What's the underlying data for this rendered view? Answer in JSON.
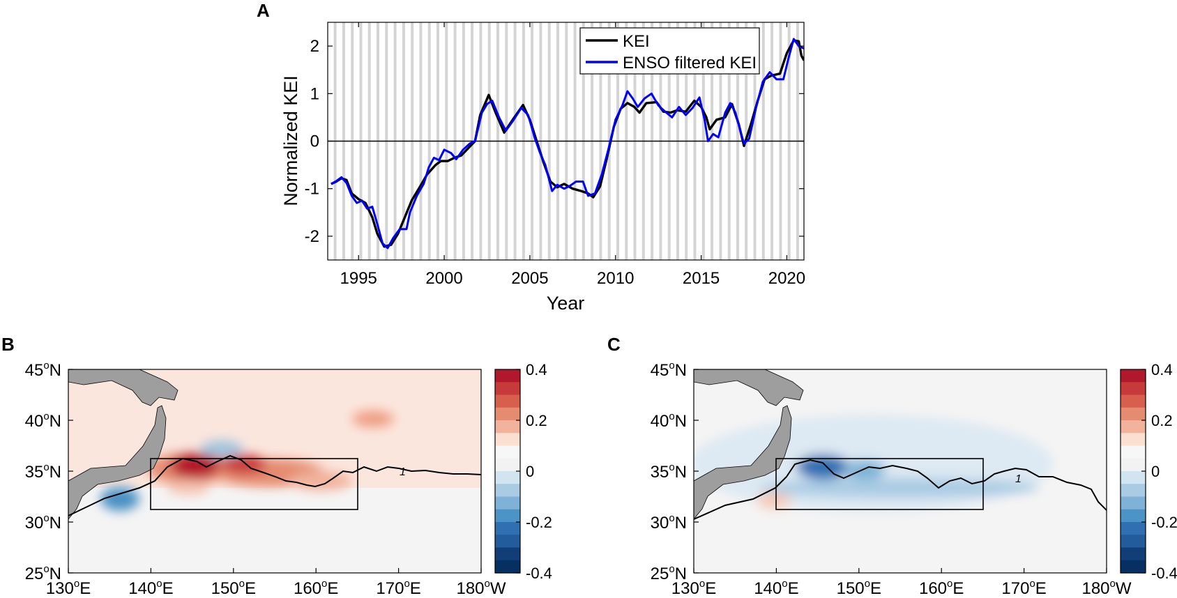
{
  "chart_data": [
    {
      "panel": "A",
      "type": "line",
      "xlabel": "Year",
      "ylabel": "Normalized KEI",
      "xlim": [
        1993.2,
        2021.0
      ],
      "ylim": [
        -2.5,
        2.5
      ],
      "xticks": [
        1995,
        2000,
        2005,
        2010,
        2015,
        2020
      ],
      "xtick_labels": [
        "1995",
        "2000",
        "2005",
        "2010",
        "2015",
        "2020"
      ],
      "yticks": [
        -2,
        -1,
        0,
        1,
        2
      ],
      "ytick_labels": [
        "-2",
        "-1",
        "0",
        "1",
        "2"
      ],
      "zero_line": true,
      "shading": "alternating light-grey vertical bands (winter months)",
      "legend_position": "top-right",
      "series": [
        {
          "name": "KEI",
          "color": "#000000",
          "points": [
            [
              1993.4,
              -0.9
            ],
            [
              1993.7,
              -0.85
            ],
            [
              1994.0,
              -0.78
            ],
            [
              1994.3,
              -0.82
            ],
            [
              1994.6,
              -1.1
            ],
            [
              1995.0,
              -1.22
            ],
            [
              1995.4,
              -1.3
            ],
            [
              1995.8,
              -1.6
            ],
            [
              1996.1,
              -1.95
            ],
            [
              1996.5,
              -2.22
            ],
            [
              1996.9,
              -2.18
            ],
            [
              1997.3,
              -1.95
            ],
            [
              1997.7,
              -1.6
            ],
            [
              1998.1,
              -1.25
            ],
            [
              1998.6,
              -0.95
            ],
            [
              1999.0,
              -0.7
            ],
            [
              1999.5,
              -0.5
            ],
            [
              1999.8,
              -0.42
            ],
            [
              2000.2,
              -0.42
            ],
            [
              2000.6,
              -0.35
            ],
            [
              2001.0,
              -0.3
            ],
            [
              2001.4,
              -0.15
            ],
            [
              2001.8,
              0.0
            ],
            [
              2002.1,
              0.55
            ],
            [
              2002.6,
              0.97
            ],
            [
              2003.0,
              0.6
            ],
            [
              2003.5,
              0.18
            ],
            [
              2004.0,
              0.45
            ],
            [
              2004.6,
              0.76
            ],
            [
              2005.0,
              0.45
            ],
            [
              2005.4,
              0.0
            ],
            [
              2005.8,
              -0.45
            ],
            [
              2006.2,
              -0.85
            ],
            [
              2006.6,
              -0.97
            ],
            [
              2007.0,
              -0.9
            ],
            [
              2007.5,
              -1.0
            ],
            [
              2008.0,
              -1.05
            ],
            [
              2008.4,
              -1.1
            ],
            [
              2008.7,
              -1.18
            ],
            [
              2009.1,
              -0.95
            ],
            [
              2009.5,
              -0.35
            ],
            [
              2009.9,
              0.3
            ],
            [
              2010.3,
              0.68
            ],
            [
              2010.7,
              0.8
            ],
            [
              2011.1,
              0.72
            ],
            [
              2011.4,
              0.6
            ],
            [
              2011.8,
              0.8
            ],
            [
              2012.4,
              0.82
            ],
            [
              2012.8,
              0.62
            ],
            [
              2013.2,
              0.6
            ],
            [
              2013.6,
              0.65
            ],
            [
              2014.1,
              0.62
            ],
            [
              2014.6,
              0.85
            ],
            [
              2015.0,
              0.72
            ],
            [
              2015.3,
              0.5
            ],
            [
              2015.5,
              0.25
            ],
            [
              2015.9,
              0.45
            ],
            [
              2016.4,
              0.5
            ],
            [
              2016.8,
              0.78
            ],
            [
              2017.2,
              0.35
            ],
            [
              2017.5,
              -0.1
            ],
            [
              2017.9,
              0.35
            ],
            [
              2018.3,
              0.85
            ],
            [
              2018.7,
              1.3
            ],
            [
              2019.1,
              1.38
            ],
            [
              2019.6,
              1.42
            ],
            [
              2020.0,
              1.85
            ],
            [
              2020.4,
              2.12
            ],
            [
              2020.7,
              2.1
            ],
            [
              2020.85,
              1.8
            ],
            [
              2021.0,
              1.7
            ]
          ]
        },
        {
          "name": "ENSO filtered KEI",
          "color": "#0000ff",
          "points": [
            [
              1993.4,
              -0.9
            ],
            [
              1993.7,
              -0.84
            ],
            [
              1994.0,
              -0.76
            ],
            [
              1994.3,
              -0.88
            ],
            [
              1994.6,
              -1.15
            ],
            [
              1994.9,
              -1.3
            ],
            [
              1995.2,
              -1.25
            ],
            [
              1995.5,
              -1.42
            ],
            [
              1995.8,
              -1.38
            ],
            [
              1996.1,
              -1.75
            ],
            [
              1996.4,
              -2.15
            ],
            [
              1996.7,
              -2.25
            ],
            [
              1997.0,
              -2.05
            ],
            [
              1997.4,
              -1.85
            ],
            [
              1997.8,
              -1.85
            ],
            [
              1998.0,
              -1.5
            ],
            [
              1998.4,
              -1.15
            ],
            [
              1998.8,
              -0.9
            ],
            [
              1999.1,
              -0.55
            ],
            [
              1999.4,
              -0.35
            ],
            [
              1999.7,
              -0.4
            ],
            [
              2000.0,
              -0.18
            ],
            [
              2000.4,
              -0.25
            ],
            [
              2000.7,
              -0.38
            ],
            [
              2001.1,
              -0.18
            ],
            [
              2001.5,
              -0.05
            ],
            [
              2001.8,
              0.0
            ],
            [
              2002.2,
              0.6
            ],
            [
              2002.5,
              0.78
            ],
            [
              2002.8,
              0.85
            ],
            [
              2003.2,
              0.5
            ],
            [
              2003.6,
              0.22
            ],
            [
              2004.0,
              0.42
            ],
            [
              2004.5,
              0.7
            ],
            [
              2004.9,
              0.55
            ],
            [
              2005.3,
              0.05
            ],
            [
              2005.6,
              -0.25
            ],
            [
              2005.9,
              -0.5
            ],
            [
              2006.3,
              -1.05
            ],
            [
              2006.6,
              -0.92
            ],
            [
              2007.0,
              -1.0
            ],
            [
              2007.3,
              -0.95
            ],
            [
              2007.7,
              -0.85
            ],
            [
              2008.1,
              -0.85
            ],
            [
              2008.4,
              -1.15
            ],
            [
              2008.8,
              -1.1
            ],
            [
              2009.2,
              -0.7
            ],
            [
              2009.6,
              -0.15
            ],
            [
              2010.0,
              0.45
            ],
            [
              2010.4,
              0.75
            ],
            [
              2010.7,
              1.05
            ],
            [
              2011.0,
              0.9
            ],
            [
              2011.3,
              0.72
            ],
            [
              2011.7,
              0.9
            ],
            [
              2012.1,
              1.0
            ],
            [
              2012.5,
              0.75
            ],
            [
              2012.9,
              0.62
            ],
            [
              2013.3,
              0.5
            ],
            [
              2013.7,
              0.72
            ],
            [
              2014.1,
              0.55
            ],
            [
              2014.5,
              0.7
            ],
            [
              2014.9,
              0.92
            ],
            [
              2015.2,
              0.45
            ],
            [
              2015.4,
              0.0
            ],
            [
              2015.7,
              0.15
            ],
            [
              2016.0,
              0.08
            ],
            [
              2016.4,
              0.6
            ],
            [
              2016.7,
              0.8
            ],
            [
              2017.0,
              0.6
            ],
            [
              2017.3,
              0.2
            ],
            [
              2017.5,
              -0.05
            ],
            [
              2017.8,
              0.05
            ],
            [
              2018.2,
              0.7
            ],
            [
              2018.6,
              1.25
            ],
            [
              2019.0,
              1.45
            ],
            [
              2019.4,
              1.3
            ],
            [
              2019.8,
              1.3
            ],
            [
              2020.1,
              1.75
            ],
            [
              2020.4,
              2.15
            ],
            [
              2020.7,
              2.0
            ],
            [
              2021.0,
              1.95
            ]
          ]
        }
      ]
    },
    {
      "panel": "B",
      "type": "heatmap",
      "map": "North Pacific, 25°N–45°N, 130°E–180°",
      "xtick_labels": [
        "130°E",
        "140°E",
        "150°E",
        "160°E",
        "170°E",
        "180°W"
      ],
      "ytick_labels": [
        "25°N",
        "30°N",
        "35°N",
        "40°N",
        "45°N"
      ],
      "colorbar_ticks": [
        0.4,
        0.2,
        0,
        -0.2,
        -0.4
      ],
      "colorbar_labels": [
        "0.4",
        "0.2",
        "0",
        "-0.2",
        "-0.4"
      ],
      "clim": [
        -0.4,
        0.4
      ],
      "box": {
        "lon": [
          140,
          165
        ],
        "lat": [
          31,
          36
        ]
      },
      "contour_label": "1",
      "anomalies": [
        {
          "lon": 145,
          "lat": 35.2,
          "value": 0.4
        },
        {
          "lon": 151,
          "lat": 35.0,
          "value": 0.3
        },
        {
          "lon": 143,
          "lat": 33.5,
          "value": 0.25
        },
        {
          "lon": 149,
          "lat": 36.0,
          "value": -0.15
        },
        {
          "lon": 136,
          "lat": 32.0,
          "value": -0.25
        },
        {
          "lon": 167,
          "lat": 39.0,
          "value": 0.15
        },
        {
          "lon": 159,
          "lat": 33.2,
          "value": 0.12
        }
      ]
    },
    {
      "panel": "C",
      "type": "heatmap",
      "map": "North Pacific, 25°N–45°N, 130°E–180°",
      "xtick_labels": [
        "130°E",
        "140°E",
        "150°E",
        "160°E",
        "170°E",
        "180°W"
      ],
      "ytick_labels": [
        "25°N",
        "30°N",
        "35°N",
        "40°N",
        "45°N"
      ],
      "colorbar_ticks": [
        0.4,
        0.2,
        0,
        -0.2,
        -0.4
      ],
      "colorbar_labels": [
        "0.4",
        "0.2",
        "0",
        "-0.2",
        "-0.4"
      ],
      "clim": [
        -0.4,
        0.4
      ],
      "box": {
        "lon": [
          140,
          165
        ],
        "lat": [
          31,
          36
        ]
      },
      "contour_label": "1",
      "anomalies": [
        {
          "lon": 144,
          "lat": 35.5,
          "value": -0.3
        },
        {
          "lon": 150,
          "lat": 35.0,
          "value": -0.15
        },
        {
          "lon": 160,
          "lat": 33.5,
          "value": -0.1
        },
        {
          "lon": 138,
          "lat": 32.5,
          "value": 0.05
        }
      ]
    }
  ],
  "panel_labels": {
    "a": "A",
    "b": "B",
    "c": "C"
  },
  "legend": {
    "kei": "KEI",
    "enso": "ENSO filtered KEI"
  },
  "axes": {
    "a_xlabel": "Year",
    "a_ylabel": "Normalized KEI"
  }
}
